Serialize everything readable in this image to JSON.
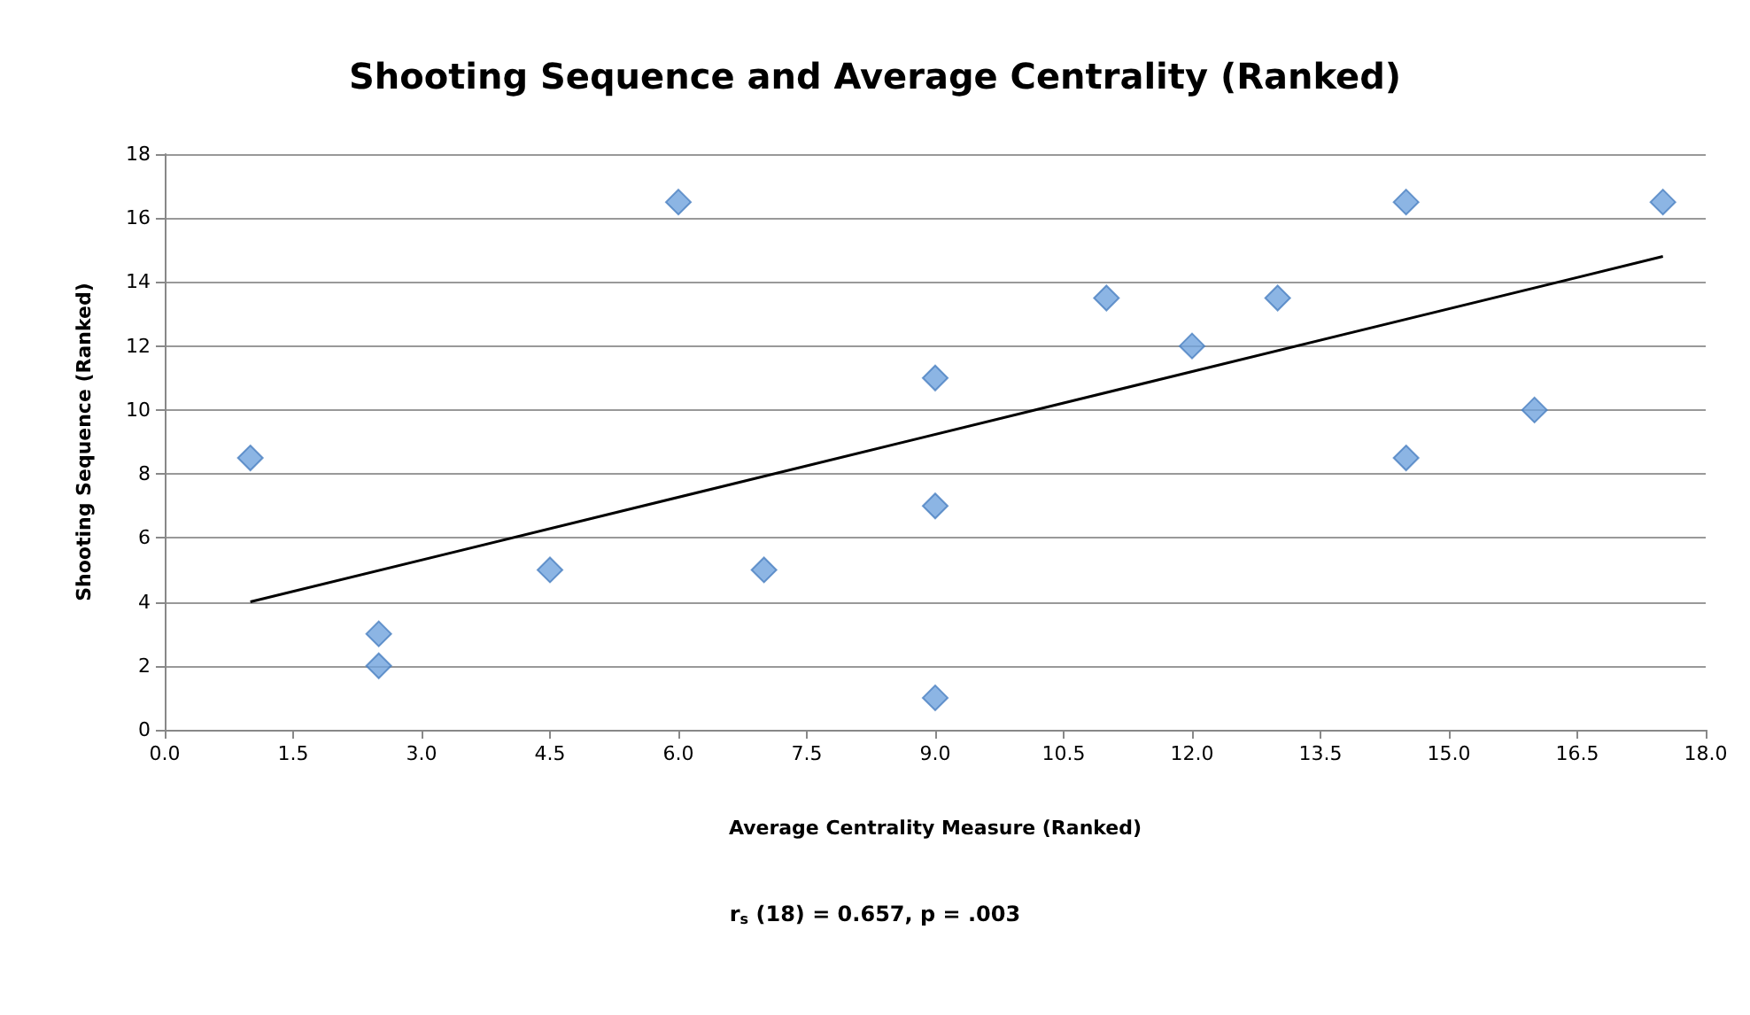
{
  "chart_data": {
    "type": "scatter",
    "title": "Shooting Sequence and Average Centrality (Ranked)",
    "xlabel": "Average Centrality Measure (Ranked)",
    "ylabel": "Shooting Sequence (Ranked)",
    "annotations": [
      "r$_{s}$ (18) = 0.657, p = .003"
    ],
    "series": [
      {
        "color": "#6fa3dd",
        "marker": "diamond",
        "x": [
          1,
          2.5,
          2.5,
          4.5,
          6,
          7,
          9,
          9,
          9,
          11,
          12,
          13,
          14.5,
          14.5,
          16,
          17.5
        ],
        "values": [
          8.5,
          3,
          2,
          5,
          16.5,
          5,
          11,
          7,
          1,
          13.5,
          12,
          13.5,
          16.5,
          8.5,
          10,
          16.5
        ]
      },
      {
        "type": "line",
        "color": "#000000",
        "marker": "none",
        "x": [
          1,
          17.5
        ],
        "values": [
          4,
          14.8
        ]
      }
    ],
    "xlim": [
      0,
      18
    ],
    "xticks": [
      {
        "value": 0,
        "label": "0.0"
      },
      {
        "value": 1.5,
        "label": "1.5"
      },
      {
        "value": 3,
        "label": "3.0"
      },
      {
        "value": 4.5,
        "label": "4.5"
      },
      {
        "value": 6,
        "label": "6.0"
      },
      {
        "value": 7.5,
        "label": "7.5"
      },
      {
        "value": 9,
        "label": "9.0"
      },
      {
        "value": 10.5,
        "label": "10.5"
      },
      {
        "value": 12,
        "label": "12.0"
      },
      {
        "value": 13.5,
        "label": "13.5"
      },
      {
        "value": 15,
        "label": "15.0"
      },
      {
        "value": 16.5,
        "label": "16.5"
      },
      {
        "value": 18,
        "label": "18.0"
      }
    ],
    "ylim": [
      0,
      18
    ],
    "yticks": [
      0,
      2,
      4,
      6,
      8,
      10,
      12,
      14,
      16,
      18
    ],
    "grid": "y"
  }
}
